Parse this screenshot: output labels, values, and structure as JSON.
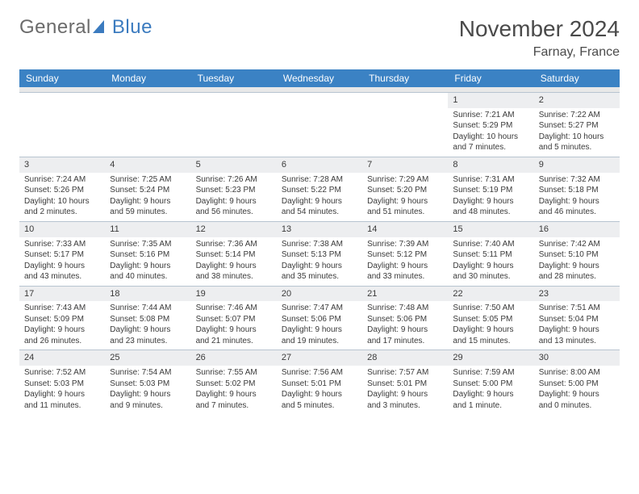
{
  "logo": {
    "text_gray": "General",
    "text_blue": "Blue"
  },
  "title": "November 2024",
  "location": "Farnay, France",
  "colors": {
    "header_bg": "#3b82c4",
    "header_text": "#ffffff",
    "daynum_bg": "#edeef0",
    "border": "#b8c4d0",
    "text": "#3a3a3a",
    "logo_gray": "#6b6b6b",
    "logo_blue": "#3b7bbf"
  },
  "weekdays": [
    "Sunday",
    "Monday",
    "Tuesday",
    "Wednesday",
    "Thursday",
    "Friday",
    "Saturday"
  ],
  "weeks": [
    [
      null,
      null,
      null,
      null,
      null,
      {
        "n": "1",
        "sr": "Sunrise: 7:21 AM",
        "ss": "Sunset: 5:29 PM",
        "d1": "Daylight: 10 hours",
        "d2": "and 7 minutes."
      },
      {
        "n": "2",
        "sr": "Sunrise: 7:22 AM",
        "ss": "Sunset: 5:27 PM",
        "d1": "Daylight: 10 hours",
        "d2": "and 5 minutes."
      }
    ],
    [
      {
        "n": "3",
        "sr": "Sunrise: 7:24 AM",
        "ss": "Sunset: 5:26 PM",
        "d1": "Daylight: 10 hours",
        "d2": "and 2 minutes."
      },
      {
        "n": "4",
        "sr": "Sunrise: 7:25 AM",
        "ss": "Sunset: 5:24 PM",
        "d1": "Daylight: 9 hours",
        "d2": "and 59 minutes."
      },
      {
        "n": "5",
        "sr": "Sunrise: 7:26 AM",
        "ss": "Sunset: 5:23 PM",
        "d1": "Daylight: 9 hours",
        "d2": "and 56 minutes."
      },
      {
        "n": "6",
        "sr": "Sunrise: 7:28 AM",
        "ss": "Sunset: 5:22 PM",
        "d1": "Daylight: 9 hours",
        "d2": "and 54 minutes."
      },
      {
        "n": "7",
        "sr": "Sunrise: 7:29 AM",
        "ss": "Sunset: 5:20 PM",
        "d1": "Daylight: 9 hours",
        "d2": "and 51 minutes."
      },
      {
        "n": "8",
        "sr": "Sunrise: 7:31 AM",
        "ss": "Sunset: 5:19 PM",
        "d1": "Daylight: 9 hours",
        "d2": "and 48 minutes."
      },
      {
        "n": "9",
        "sr": "Sunrise: 7:32 AM",
        "ss": "Sunset: 5:18 PM",
        "d1": "Daylight: 9 hours",
        "d2": "and 46 minutes."
      }
    ],
    [
      {
        "n": "10",
        "sr": "Sunrise: 7:33 AM",
        "ss": "Sunset: 5:17 PM",
        "d1": "Daylight: 9 hours",
        "d2": "and 43 minutes."
      },
      {
        "n": "11",
        "sr": "Sunrise: 7:35 AM",
        "ss": "Sunset: 5:16 PM",
        "d1": "Daylight: 9 hours",
        "d2": "and 40 minutes."
      },
      {
        "n": "12",
        "sr": "Sunrise: 7:36 AM",
        "ss": "Sunset: 5:14 PM",
        "d1": "Daylight: 9 hours",
        "d2": "and 38 minutes."
      },
      {
        "n": "13",
        "sr": "Sunrise: 7:38 AM",
        "ss": "Sunset: 5:13 PM",
        "d1": "Daylight: 9 hours",
        "d2": "and 35 minutes."
      },
      {
        "n": "14",
        "sr": "Sunrise: 7:39 AM",
        "ss": "Sunset: 5:12 PM",
        "d1": "Daylight: 9 hours",
        "d2": "and 33 minutes."
      },
      {
        "n": "15",
        "sr": "Sunrise: 7:40 AM",
        "ss": "Sunset: 5:11 PM",
        "d1": "Daylight: 9 hours",
        "d2": "and 30 minutes."
      },
      {
        "n": "16",
        "sr": "Sunrise: 7:42 AM",
        "ss": "Sunset: 5:10 PM",
        "d1": "Daylight: 9 hours",
        "d2": "and 28 minutes."
      }
    ],
    [
      {
        "n": "17",
        "sr": "Sunrise: 7:43 AM",
        "ss": "Sunset: 5:09 PM",
        "d1": "Daylight: 9 hours",
        "d2": "and 26 minutes."
      },
      {
        "n": "18",
        "sr": "Sunrise: 7:44 AM",
        "ss": "Sunset: 5:08 PM",
        "d1": "Daylight: 9 hours",
        "d2": "and 23 minutes."
      },
      {
        "n": "19",
        "sr": "Sunrise: 7:46 AM",
        "ss": "Sunset: 5:07 PM",
        "d1": "Daylight: 9 hours",
        "d2": "and 21 minutes."
      },
      {
        "n": "20",
        "sr": "Sunrise: 7:47 AM",
        "ss": "Sunset: 5:06 PM",
        "d1": "Daylight: 9 hours",
        "d2": "and 19 minutes."
      },
      {
        "n": "21",
        "sr": "Sunrise: 7:48 AM",
        "ss": "Sunset: 5:06 PM",
        "d1": "Daylight: 9 hours",
        "d2": "and 17 minutes."
      },
      {
        "n": "22",
        "sr": "Sunrise: 7:50 AM",
        "ss": "Sunset: 5:05 PM",
        "d1": "Daylight: 9 hours",
        "d2": "and 15 minutes."
      },
      {
        "n": "23",
        "sr": "Sunrise: 7:51 AM",
        "ss": "Sunset: 5:04 PM",
        "d1": "Daylight: 9 hours",
        "d2": "and 13 minutes."
      }
    ],
    [
      {
        "n": "24",
        "sr": "Sunrise: 7:52 AM",
        "ss": "Sunset: 5:03 PM",
        "d1": "Daylight: 9 hours",
        "d2": "and 11 minutes."
      },
      {
        "n": "25",
        "sr": "Sunrise: 7:54 AM",
        "ss": "Sunset: 5:03 PM",
        "d1": "Daylight: 9 hours",
        "d2": "and 9 minutes."
      },
      {
        "n": "26",
        "sr": "Sunrise: 7:55 AM",
        "ss": "Sunset: 5:02 PM",
        "d1": "Daylight: 9 hours",
        "d2": "and 7 minutes."
      },
      {
        "n": "27",
        "sr": "Sunrise: 7:56 AM",
        "ss": "Sunset: 5:01 PM",
        "d1": "Daylight: 9 hours",
        "d2": "and 5 minutes."
      },
      {
        "n": "28",
        "sr": "Sunrise: 7:57 AM",
        "ss": "Sunset: 5:01 PM",
        "d1": "Daylight: 9 hours",
        "d2": "and 3 minutes."
      },
      {
        "n": "29",
        "sr": "Sunrise: 7:59 AM",
        "ss": "Sunset: 5:00 PM",
        "d1": "Daylight: 9 hours",
        "d2": "and 1 minute."
      },
      {
        "n": "30",
        "sr": "Sunrise: 8:00 AM",
        "ss": "Sunset: 5:00 PM",
        "d1": "Daylight: 9 hours",
        "d2": "and 0 minutes."
      }
    ]
  ]
}
